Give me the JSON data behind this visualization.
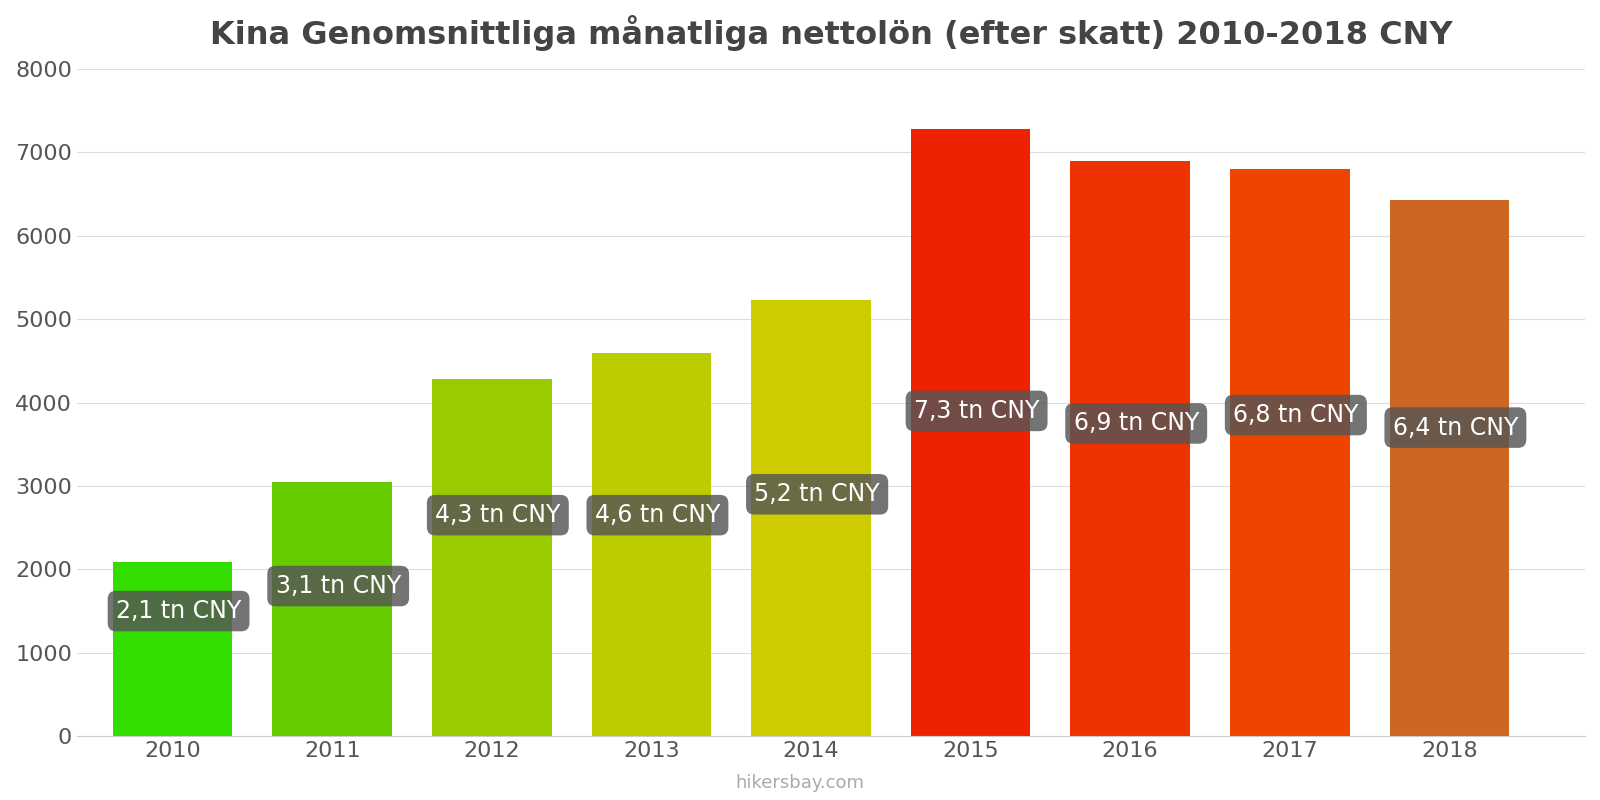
{
  "title": "Kina Genomsnittliga månatliga nettolön (efter skatt) 2010-2018 CNY",
  "years": [
    2010,
    2011,
    2012,
    2013,
    2014,
    2015,
    2016,
    2017,
    2018
  ],
  "values": [
    2090,
    3050,
    4280,
    4600,
    5230,
    7280,
    6900,
    6800,
    6430
  ],
  "bar_colors": [
    "#33dd00",
    "#66cc00",
    "#99cc00",
    "#bbcc00",
    "#cccc00",
    "#ee2200",
    "#ee3300",
    "#ee4400",
    "#cc6622"
  ],
  "labels": [
    "2,1 tn CNY",
    "3,1 tn CNY",
    "4,3 tn CNY",
    "4,6 tn CNY",
    "5,2 tn CNY",
    "7,3 tn CNY",
    "6,9 tn CNY",
    "6,8 tn CNY",
    "6,4 tn CNY"
  ],
  "label_y_positions": [
    1500,
    1800,
    2650,
    2650,
    2900,
    3900,
    3750,
    3850,
    3700
  ],
  "ylim": [
    0,
    8000
  ],
  "yticks": [
    0,
    1000,
    2000,
    3000,
    4000,
    5000,
    6000,
    7000,
    8000
  ],
  "watermark": "hikersbay.com",
  "label_box_color": "#555555",
  "label_text_color": "#ffffff",
  "label_fontsize": 17,
  "title_fontsize": 23,
  "background_color": "#ffffff",
  "bar_width": 0.75
}
